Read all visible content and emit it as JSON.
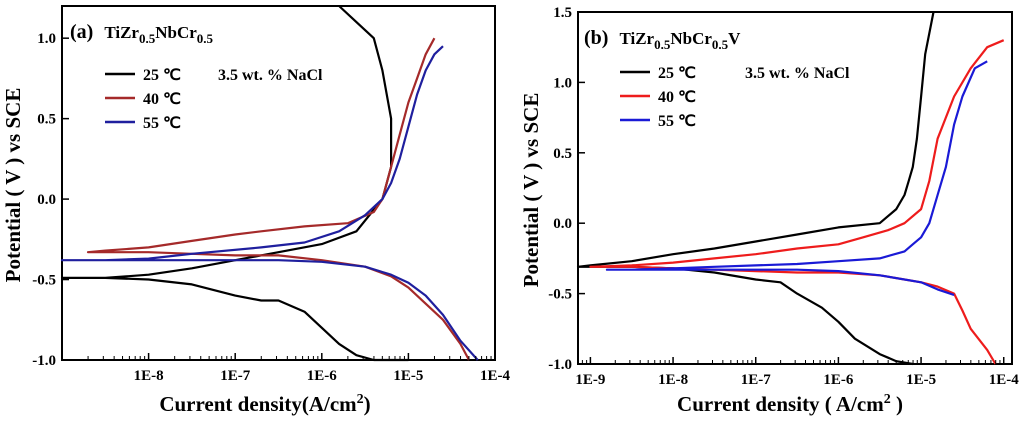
{
  "chart_data": [
    {
      "type": "line",
      "panel_label": "(a)",
      "title_parts": {
        "base": "TiZr",
        "sub1": "0.5",
        "mid": "NbCr",
        "sub2": "0.5",
        "tail": ""
      },
      "annotation": "3.5 wt. %  NaCl",
      "xlabel_main": "Current density(A/cm",
      "xlabel_sup": "2",
      "xlabel_end": ")",
      "ylabel": "Potential ( V ) vs SCE",
      "x_log_range": [
        -9,
        -4.0
      ],
      "ylim": [
        -1.0,
        1.2
      ],
      "xticks": [
        {
          "e": -8,
          "label": "1E-8"
        },
        {
          "e": -7,
          "label": "1E-7"
        },
        {
          "e": -6,
          "label": "1E-6"
        },
        {
          "e": -5,
          "label": "1E-5"
        },
        {
          "e": -4,
          "label": "1E-4"
        }
      ],
      "yticks": [
        {
          "v": -1.0,
          "label": "-1.0"
        },
        {
          "v": -0.5,
          "label": "-0.5"
        },
        {
          "v": 0.0,
          "label": "0.0"
        },
        {
          "v": 0.5,
          "label": "0.5"
        },
        {
          "v": 1.0,
          "label": "1.0"
        }
      ],
      "series": [
        {
          "name": "25 ℃",
          "color": "#000000",
          "x": [
            -5.8,
            -5.6,
            -5.4,
            -5.3,
            -5.2,
            -5.2,
            -5.3,
            -5.6,
            -6.0,
            -6.5,
            -7.0,
            -7.5,
            -8.0,
            -8.5,
            -9.0,
            -8.5,
            -8.0,
            -7.5,
            -7.0,
            -6.7,
            -6.5,
            -6.2,
            -6.0,
            -5.8,
            -5.6,
            -5.4,
            -5.2,
            -5.0
          ],
          "y": [
            1.2,
            1.1,
            1.0,
            0.8,
            0.5,
            0.2,
            0.0,
            -0.2,
            -0.28,
            -0.33,
            -0.38,
            -0.43,
            -0.47,
            -0.49,
            -0.49,
            -0.49,
            -0.5,
            -0.53,
            -0.6,
            -0.63,
            -0.63,
            -0.7,
            -0.8,
            -0.9,
            -0.97,
            -1.0,
            -1.0,
            -1.0
          ]
        },
        {
          "name": "40 ℃",
          "color": "#a52a2a",
          "x": [
            -4.7,
            -4.8,
            -4.9,
            -5.0,
            -5.1,
            -5.2,
            -5.3,
            -5.4,
            -5.7,
            -6.2,
            -6.7,
            -7.0,
            -7.5,
            -8.0,
            -8.5,
            -8.7,
            -8.0,
            -7.5,
            -7.0,
            -6.5,
            -6.0,
            -5.5,
            -5.2,
            -5.0,
            -4.8,
            -4.6,
            -4.4,
            -4.3
          ],
          "y": [
            1.0,
            0.9,
            0.75,
            0.6,
            0.4,
            0.2,
            0.0,
            -0.08,
            -0.15,
            -0.17,
            -0.2,
            -0.22,
            -0.26,
            -0.3,
            -0.32,
            -0.33,
            -0.33,
            -0.34,
            -0.35,
            -0.35,
            -0.38,
            -0.42,
            -0.48,
            -0.55,
            -0.65,
            -0.75,
            -0.9,
            -1.0
          ]
        },
        {
          "name": "55 ℃",
          "color": "#1f1f9e",
          "x": [
            -4.6,
            -4.7,
            -4.8,
            -4.9,
            -5.0,
            -5.1,
            -5.2,
            -5.3,
            -5.5,
            -5.8,
            -6.2,
            -6.7,
            -7.5,
            -8.0,
            -8.5,
            -9.0,
            -8.5,
            -8.0,
            -7.5,
            -7.0,
            -6.5,
            -6.0,
            -5.5,
            -5.2,
            -5.0,
            -4.8,
            -4.6,
            -4.4,
            -4.2
          ],
          "y": [
            0.95,
            0.9,
            0.8,
            0.65,
            0.45,
            0.25,
            0.1,
            0.0,
            -0.1,
            -0.2,
            -0.27,
            -0.3,
            -0.34,
            -0.37,
            -0.38,
            -0.38,
            -0.38,
            -0.38,
            -0.38,
            -0.38,
            -0.38,
            -0.39,
            -0.42,
            -0.47,
            -0.52,
            -0.6,
            -0.72,
            -0.88,
            -1.0
          ]
        }
      ]
    },
    {
      "type": "line",
      "panel_label": "(b)",
      "title_parts": {
        "base": "TiZr",
        "sub1": "0.5",
        "mid": "NbCr",
        "sub2": "0.5",
        "tail": "V"
      },
      "annotation": "3.5 wt. % NaCl",
      "xlabel_main": "Current density ( A/cm",
      "xlabel_sup": "2",
      "xlabel_end": " )",
      "ylabel": "Potential ( V ) vs SCE",
      "x_log_range": [
        -9.15,
        -3.9
      ],
      "ylim": [
        -1.0,
        1.5
      ],
      "xticks": [
        {
          "e": -9,
          "label": "1E-9"
        },
        {
          "e": -8,
          "label": "1E-8"
        },
        {
          "e": -7,
          "label": "1E-7"
        },
        {
          "e": -6,
          "label": "1E-6"
        },
        {
          "e": -5,
          "label": "1E-5"
        },
        {
          "e": -4,
          "label": "1E-4"
        }
      ],
      "yticks": [
        {
          "v": -1.0,
          "label": "-1.0"
        },
        {
          "v": -0.5,
          "label": "-0.5"
        },
        {
          "v": 0.0,
          "label": "0.0"
        },
        {
          "v": 0.5,
          "label": "0.5"
        },
        {
          "v": 1.0,
          "label": "1.0"
        },
        {
          "v": 1.5,
          "label": "1.5"
        }
      ],
      "series": [
        {
          "name": "25 ℃",
          "color": "#000000",
          "x": [
            -4.85,
            -4.95,
            -5.0,
            -5.05,
            -5.1,
            -5.15,
            -5.2,
            -5.3,
            -5.5,
            -6.0,
            -6.5,
            -7.0,
            -7.5,
            -8.0,
            -8.5,
            -9.0,
            -9.2,
            -8.5,
            -8.0,
            -7.5,
            -7.0,
            -6.7,
            -6.5,
            -6.2,
            -6.0,
            -5.8,
            -5.5,
            -5.3,
            -5.1
          ],
          "y": [
            1.5,
            1.2,
            0.9,
            0.6,
            0.4,
            0.3,
            0.2,
            0.1,
            0.0,
            -0.03,
            -0.08,
            -0.13,
            -0.18,
            -0.22,
            -0.27,
            -0.3,
            -0.31,
            -0.31,
            -0.32,
            -0.35,
            -0.4,
            -0.42,
            -0.5,
            -0.6,
            -0.7,
            -0.82,
            -0.93,
            -0.98,
            -1.0
          ]
        },
        {
          "name": "40 ℃",
          "color": "#ee1c1c",
          "x": [
            -4.0,
            -4.2,
            -4.4,
            -4.6,
            -4.8,
            -4.9,
            -5.0,
            -5.2,
            -5.4,
            -5.7,
            -6.0,
            -6.5,
            -7.0,
            -7.5,
            -8.0,
            -8.5,
            -9.0,
            -8.5,
            -8.0,
            -7.5,
            -7.0,
            -6.5,
            -6.0,
            -5.5,
            -5.2,
            -5.0,
            -4.8,
            -4.6,
            -4.5,
            -4.4,
            -4.2,
            -4.1
          ],
          "y": [
            1.3,
            1.25,
            1.1,
            0.9,
            0.6,
            0.3,
            0.1,
            0.0,
            -0.05,
            -0.1,
            -0.15,
            -0.18,
            -0.22,
            -0.25,
            -0.28,
            -0.3,
            -0.31,
            -0.31,
            -0.32,
            -0.33,
            -0.34,
            -0.35,
            -0.35,
            -0.37,
            -0.4,
            -0.42,
            -0.45,
            -0.5,
            -0.62,
            -0.75,
            -0.9,
            -1.0
          ]
        },
        {
          "name": "55 ℃",
          "color": "#1a1ad6",
          "x": [
            -4.2,
            -4.35,
            -4.5,
            -4.6,
            -4.7,
            -4.8,
            -4.9,
            -5.0,
            -5.1,
            -5.2,
            -5.5,
            -6.0,
            -6.5,
            -7.0,
            -7.5,
            -8.0,
            -8.5,
            -8.8,
            -8.5,
            -8.0,
            -7.5,
            -7.0,
            -6.5,
            -6.0,
            -5.5,
            -5.0,
            -4.8,
            -4.6
          ],
          "y": [
            1.15,
            1.1,
            0.9,
            0.7,
            0.4,
            0.2,
            0.0,
            -0.1,
            -0.15,
            -0.2,
            -0.25,
            -0.27,
            -0.29,
            -0.3,
            -0.31,
            -0.32,
            -0.33,
            -0.33,
            -0.33,
            -0.33,
            -0.33,
            -0.33,
            -0.33,
            -0.34,
            -0.37,
            -0.42,
            -0.47,
            -0.51
          ]
        }
      ]
    }
  ]
}
